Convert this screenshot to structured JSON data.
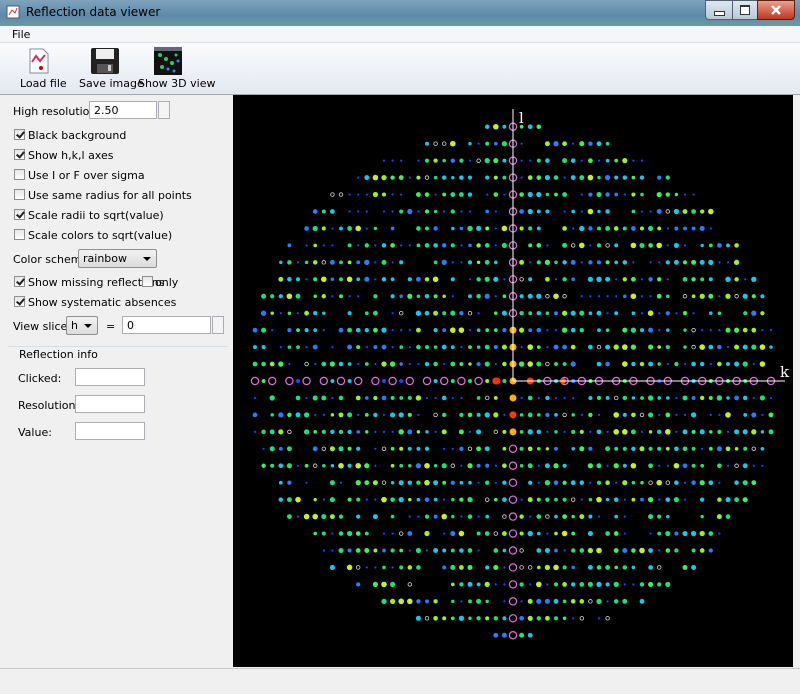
{
  "window": {
    "title": "Reflection data viewer"
  },
  "menu": [
    "File"
  ],
  "toolbar": [
    "Load file",
    "Save image",
    "Show 3D view"
  ],
  "controls": {
    "high_resolution": {
      "label": "High resolution:",
      "value": "2.50"
    },
    "checkboxes": [
      {
        "label": "Black background",
        "checked": true
      },
      {
        "label": "Show h,k,l axes",
        "checked": true
      },
      {
        "label": "Use I or F over sigma",
        "checked": false
      },
      {
        "label": "Use same radius for all points",
        "checked": false
      },
      {
        "label": "Scale radii to sqrt(value)",
        "checked": true
      },
      {
        "label": "Scale colors to sqrt(value)",
        "checked": false
      }
    ],
    "color_scheme": {
      "label": "Color scheme:",
      "value": "rainbow"
    },
    "missing": {
      "label": "Show missing reflections",
      "checked": true
    },
    "only": {
      "label": "only",
      "checked": false
    },
    "absences": {
      "label": "Show systematic absences",
      "checked": true
    },
    "view_slice": {
      "label": "View slice:",
      "axis": "h",
      "equals": "=",
      "value": "0"
    }
  },
  "reflection_info": {
    "title": "Reflection info",
    "fields": [
      "Clicked:",
      "Resolution:",
      "Value:"
    ]
  },
  "plot": {
    "axis_labels": [
      "l",
      "k"
    ]
  }
}
